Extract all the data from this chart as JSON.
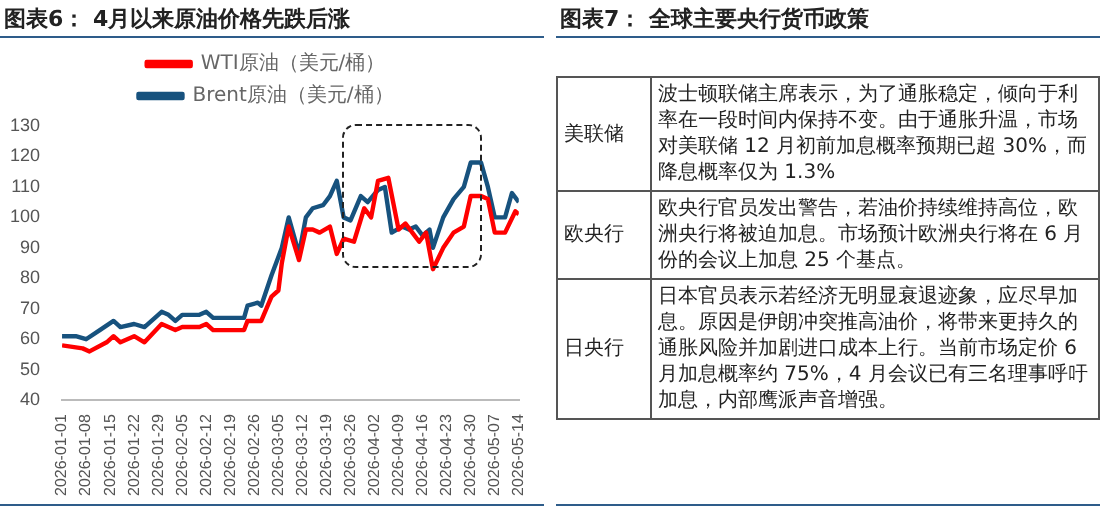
{
  "chart_data": [
    {
      "type": "line",
      "title": "图表6：  4月以来原油价格先跌后涨",
      "legend": "top",
      "marker": "none",
      "line_style": "solid",
      "grid": false,
      "xlim": [
        "2026-01-01",
        "2026-05-14"
      ],
      "xticks": [
        "2026-01-01",
        "2026-01-08",
        "2026-01-15",
        "2026-01-22",
        "2026-01-29",
        "2026-02-05",
        "2026-02-12",
        "2026-02-19",
        "2026-02-26",
        "2026-03-05",
        "2026-03-12",
        "2026-03-19",
        "2026-03-26",
        "2026-04-02",
        "2026-04-09",
        "2026-04-16",
        "2026-04-23",
        "2026-04-30",
        "2026-05-07",
        "2026-05-14"
      ],
      "ylim": [
        40,
        130
      ],
      "yticks": [
        40,
        50,
        60,
        70,
        80,
        90,
        100,
        110,
        120,
        130
      ],
      "series": [
        {
          "name": "WTI原油（美元/桶）",
          "color": "#ff0000",
          "x": [
            "2026-01-01",
            "2026-01-07",
            "2026-01-09",
            "2026-01-14",
            "2026-01-16",
            "2026-01-18",
            "2026-01-22",
            "2026-01-25",
            "2026-01-30",
            "2026-02-03",
            "2026-02-05",
            "2026-02-10",
            "2026-02-12",
            "2026-02-14",
            "2026-02-23",
            "2026-02-24",
            "2026-02-28",
            "2026-03-03",
            "2026-03-05",
            "2026-03-06",
            "2026-03-08",
            "2026-03-11",
            "2026-03-13",
            "2026-03-15",
            "2026-03-17",
            "2026-03-20",
            "2026-03-22",
            "2026-03-24",
            "2026-03-27",
            "2026-03-30",
            "2026-04-01",
            "2026-04-03",
            "2026-04-06",
            "2026-04-09",
            "2026-04-11",
            "2026-04-13",
            "2026-04-15",
            "2026-04-17",
            "2026-04-19",
            "2026-04-22",
            "2026-04-25",
            "2026-04-28",
            "2026-04-30",
            "2026-05-03",
            "2026-05-05",
            "2026-05-07",
            "2026-05-10",
            "2026-05-13",
            "2026-05-14"
          ],
          "values": [
            58,
            57,
            56,
            59,
            61,
            59,
            61,
            59,
            65,
            63,
            64,
            64,
            65,
            63,
            63,
            66,
            66,
            74,
            76,
            85,
            97,
            86,
            96,
            96,
            95,
            97,
            88,
            93,
            92,
            103,
            100,
            112,
            113,
            96,
            98,
            95,
            92,
            95,
            83,
            90,
            95,
            97,
            107,
            107,
            106,
            95,
            95,
            102,
            101
          ]
        },
        {
          "name": "Brent原油（美元/桶）",
          "color": "#17527e",
          "x": [
            "2026-01-01",
            "2026-01-05",
            "2026-01-08",
            "2026-01-12",
            "2026-01-16",
            "2026-01-18",
            "2026-01-22",
            "2026-01-25",
            "2026-01-30",
            "2026-02-01",
            "2026-02-03",
            "2026-02-05",
            "2026-02-10",
            "2026-02-12",
            "2026-02-14",
            "2026-02-20",
            "2026-02-23",
            "2026-02-24",
            "2026-02-27",
            "2026-02-28",
            "2026-03-03",
            "2026-03-06",
            "2026-03-08",
            "2026-03-11",
            "2026-03-13",
            "2026-03-15",
            "2026-03-18",
            "2026-03-20",
            "2026-03-22",
            "2026-03-24",
            "2026-03-26",
            "2026-03-29",
            "2026-03-31",
            "2026-04-03",
            "2026-04-05",
            "2026-04-07",
            "2026-04-10",
            "2026-04-12",
            "2026-04-14",
            "2026-04-16",
            "2026-04-18",
            "2026-04-19",
            "2026-04-22",
            "2026-04-25",
            "2026-04-28",
            "2026-04-30",
            "2026-05-03",
            "2026-05-05",
            "2026-05-07",
            "2026-05-10",
            "2026-05-12",
            "2026-05-14"
          ],
          "values": [
            61,
            61,
            60,
            63,
            66,
            64,
            65,
            64,
            69,
            68,
            66,
            68,
            68,
            69,
            67,
            67,
            67,
            71,
            72,
            71,
            81,
            90,
            100,
            88,
            100,
            103,
            104,
            107,
            112,
            100,
            99,
            107,
            105,
            109,
            110,
            95,
            97,
            96,
            97,
            94,
            96,
            90,
            100,
            106,
            110,
            118,
            118,
            110,
            100,
            100,
            108,
            105
          ]
        }
      ]
    },
    {
      "type": "other",
      "title": "图表7：  全球主要央行货币政策",
      "categories": [
        "美联储",
        "欧央行",
        "日央行"
      ],
      "annotations": [
        "波士顿联储主席表示，为了通胀稳定，倾向于利率在一段时间内保持不变。由于通胀升温，市场对美联储 12 月初前加息概率预期已超 30%，而降息概率仅为 1.3%",
        "欧央行官员发出警告，若油价持续维持高位，欧洲央行将被迫加息。市场预计欧洲央行将在 6 月份的会议上加息 25 个基点。",
        "日本官员表示若经济无明显衰退迹象，应尽早加息。原因是伊朗冲突推高油价，将带来更持久的通胀风险并加剧进口成本上行。当前市场定价 6 月加息概率约 75%，4 月会议已有三名理事呼吁加息，内部鹰派声音增强。"
      ]
    }
  ]
}
